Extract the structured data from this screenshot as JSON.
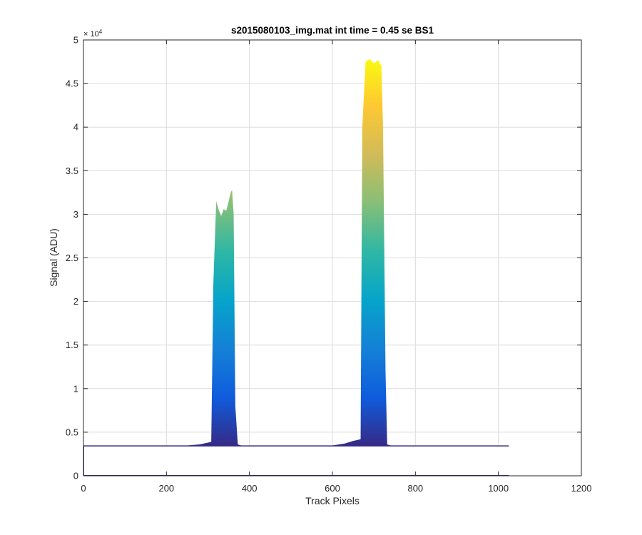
{
  "chart_data": {
    "type": "area",
    "title": "s2015080103_img.mat int time = 0.45 se   BS1",
    "xlabel": "Track Pixels",
    "ylabel": "Signal (ADU)",
    "xlim": [
      0,
      1200
    ],
    "ylim": [
      0,
      50000
    ],
    "xticks": [
      0,
      200,
      400,
      600,
      800,
      1000,
      1200
    ],
    "xtick_labels": [
      "0",
      "200",
      "400",
      "600",
      "800",
      "1000",
      "1200"
    ],
    "yticks": [
      0,
      5000,
      10000,
      15000,
      20000,
      25000,
      30000,
      35000,
      40000,
      45000,
      50000
    ],
    "ytick_labels": [
      "0",
      "0.5",
      "1",
      "1.5",
      "2",
      "2.5",
      "3",
      "3.5",
      "4",
      "4.5",
      "5"
    ],
    "y_exponent": {
      "base": "× 10",
      "power": "4"
    },
    "grid": true,
    "colormap": "parula",
    "colors": [
      "#352a87",
      "#0f5cdd",
      "#1481d6",
      "#06a4ca",
      "#2eb7a4",
      "#87bf77",
      "#d1bb59",
      "#fec832",
      "#f9fb0e"
    ],
    "baseline": 3450,
    "series": [
      {
        "x": [
          0,
          250,
          280,
          300,
          308,
          313,
          320,
          326,
          332,
          338,
          344,
          350,
          355,
          358,
          362,
          366,
          372,
          380,
          450,
          600,
          630,
          650,
          660,
          668,
          672,
          680,
          690,
          700,
          710,
          718,
          722,
          728,
          732,
          740,
          800,
          900,
          1025
        ],
        "y": [
          3450,
          3480,
          3600,
          3800,
          3900,
          22000,
          31500,
          30500,
          29800,
          30600,
          30400,
          31500,
          32500,
          32800,
          30000,
          8000,
          3600,
          3480,
          3450,
          3480,
          3700,
          4000,
          4100,
          4200,
          40000,
          47500,
          47800,
          47300,
          47700,
          47000,
          40000,
          12000,
          3600,
          3480,
          3450,
          3450,
          3450
        ]
      }
    ]
  }
}
